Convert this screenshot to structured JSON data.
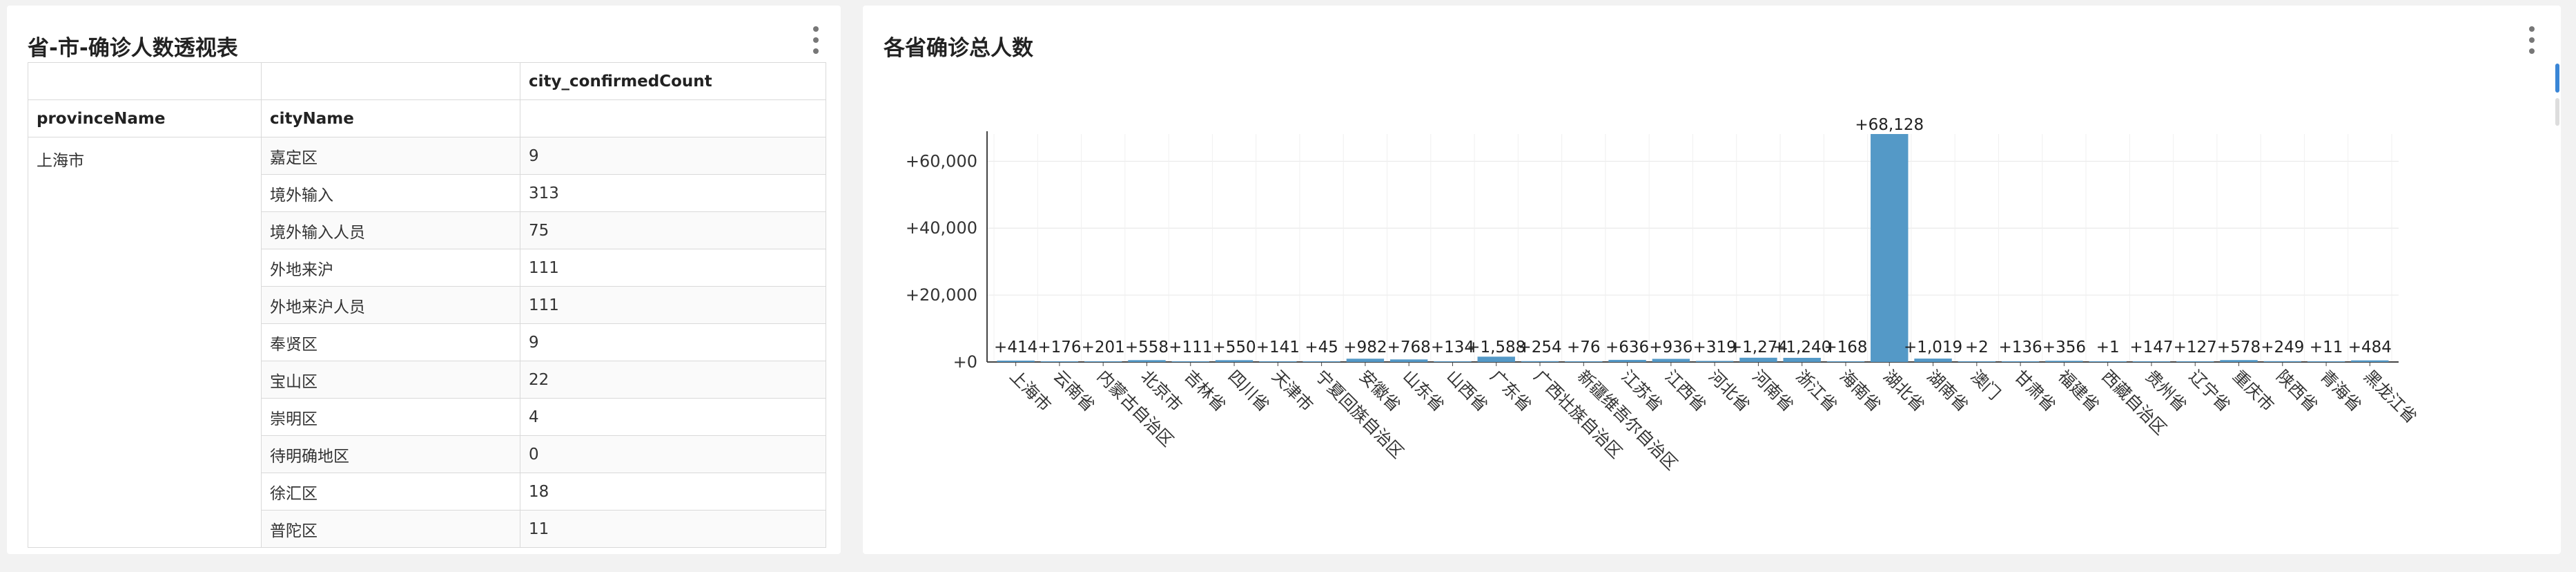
{
  "left_panel": {
    "title": "省-市-确诊人数透视表",
    "table": {
      "value_header": "city_confirmedCount",
      "row_headers": [
        "provinceName",
        "cityName"
      ],
      "province": "上海市",
      "rows": [
        {
          "city": "嘉定区",
          "value": "9"
        },
        {
          "city": "境外输入",
          "value": "313"
        },
        {
          "city": "境外输入人员",
          "value": "75"
        },
        {
          "city": "外地来沪",
          "value": "111"
        },
        {
          "city": "外地来沪人员",
          "value": "111"
        },
        {
          "city": "奉贤区",
          "value": "9"
        },
        {
          "city": "宝山区",
          "value": "22"
        },
        {
          "city": "崇明区",
          "value": "4"
        },
        {
          "city": "待明确地区",
          "value": "0"
        },
        {
          "city": "徐汇区",
          "value": "18"
        },
        {
          "city": "普陀区",
          "value": "11"
        }
      ]
    }
  },
  "right_panel": {
    "title": "各省确诊总人数"
  },
  "chart_data": {
    "type": "bar",
    "title": "各省确诊总人数",
    "xlabel": "",
    "ylabel": "",
    "ylim": [
      0,
      68128
    ],
    "yticks": [
      0,
      20000,
      40000,
      60000
    ],
    "ytick_labels": [
      "+0",
      "+20,000",
      "+40,000",
      "+60,000"
    ],
    "grid": true,
    "bar_color": "#5499c7",
    "categories": [
      "上海市",
      "云南省",
      "内蒙古自治区",
      "北京市",
      "吉林省",
      "四川省",
      "天津市",
      "宁夏回族自治区",
      "安徽省",
      "山东省",
      "山西省",
      "广东省",
      "广西壮族自治区",
      "新疆维吾尔自治区",
      "江苏省",
      "江西省",
      "河北省",
      "河南省",
      "浙江省",
      "海南省",
      "湖北省",
      "湖南省",
      "澳门",
      "甘肃省",
      "福建省",
      "西藏自治区",
      "贵州省",
      "辽宁省",
      "重庆市",
      "陕西省",
      "青海省",
      "黑龙江省"
    ],
    "values": [
      414,
      176,
      201,
      558,
      111,
      550,
      141,
      45,
      982,
      768,
      134,
      1588,
      254,
      76,
      636,
      936,
      319,
      1274,
      1240,
      168,
      68128,
      1019,
      2,
      136,
      356,
      1,
      147,
      127,
      578,
      249,
      11,
      484
    ],
    "value_labels": [
      "+414",
      "+176",
      "+201",
      "+558",
      "+111",
      "+550",
      "+141",
      "+45",
      "+982",
      "+768",
      "+134",
      "+1,588",
      "+254",
      "+76",
      "+636",
      "+936",
      "+319",
      "+1,274",
      "+1,240",
      "+168",
      "+68,128",
      "+1,019",
      "+2",
      "+136",
      "+356",
      "+1",
      "+147",
      "+127",
      "+578",
      "+249",
      "+11",
      "+484"
    ]
  }
}
